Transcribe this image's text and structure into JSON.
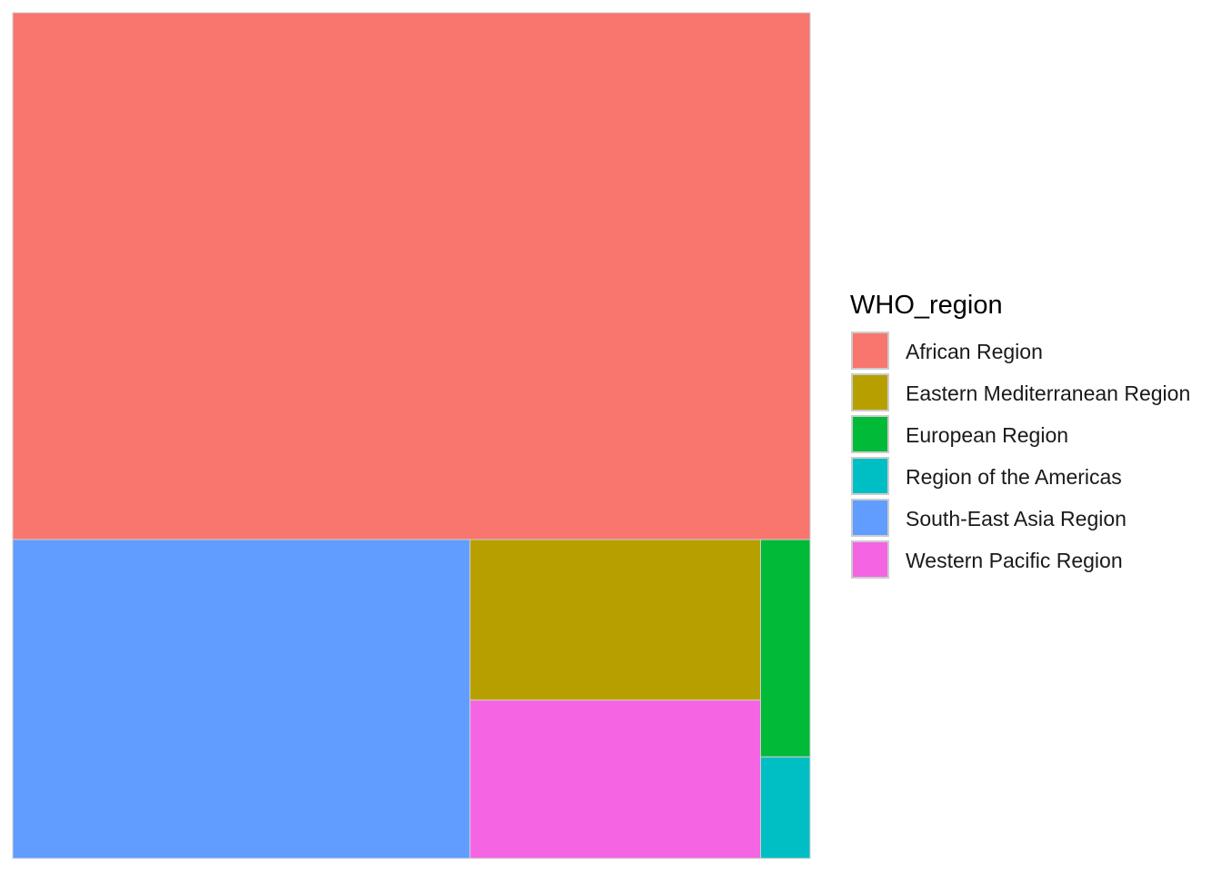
{
  "chart_data": {
    "type": "treemap",
    "legend": {
      "title": "WHO_region",
      "placement": "right"
    },
    "series": [
      {
        "name": "African Region",
        "value": 58.5,
        "color": "#F8766D"
      },
      {
        "name": "Eastern Mediterranean Region",
        "value": 6.5,
        "color": "#B79F00"
      },
      {
        "name": "European Region",
        "value": 1.5,
        "color": "#00BA38"
      },
      {
        "name": "Region of the Americas",
        "value": 0.7,
        "color": "#00BFC4"
      },
      {
        "name": "South-East Asia Region",
        "value": 20.3,
        "color": "#619CFF"
      },
      {
        "name": "Western Pacific Region",
        "value": 6.4,
        "color": "#F564E3"
      }
    ]
  }
}
